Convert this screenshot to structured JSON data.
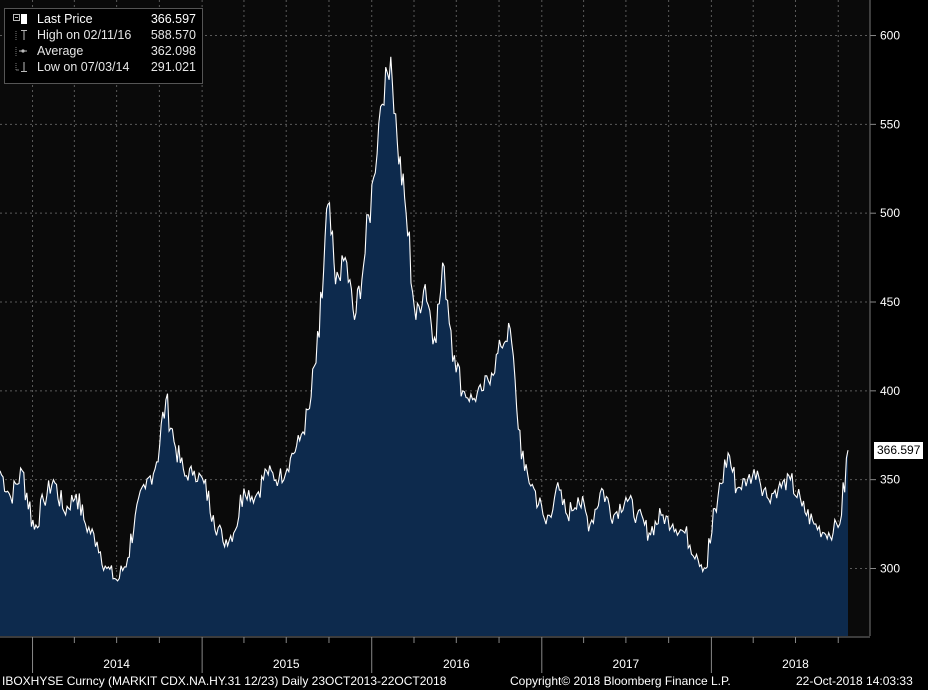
{
  "legend": {
    "last_price_label": "Last Price",
    "last_price_value": "366.597",
    "high_label": "High on 02/11/16",
    "high_value": "588.570",
    "average_label": "Average",
    "average_value": "362.098",
    "low_label": "Low on 07/03/14",
    "low_value": "291.021"
  },
  "last_tag": "366.597",
  "footer": {
    "security": "IBOXHYSE Curncy (MARKIT CDX.NA.HY.31 12/23)  Daily 23OCT2013-22OCT2018",
    "copyright": "Copyright© 2018 Bloomberg Finance L.P.",
    "timestamp": "22-Oct-2018 14:03:33"
  },
  "colors": {
    "background": "#000000",
    "area_fill": "#0d2a4d",
    "line": "#ffffff",
    "grid": "#5a5a5a"
  },
  "chart_data": {
    "type": "area",
    "title": "",
    "xlabel": "",
    "ylabel": "",
    "ylim": [
      262,
      620
    ],
    "y_ticks": [
      300,
      350,
      400,
      450,
      500,
      550,
      600
    ],
    "x_ticks": [
      "2014",
      "2015",
      "2016",
      "2017",
      "2018"
    ],
    "x_range": [
      "2013-10-23",
      "2018-10-22"
    ],
    "grid": true,
    "legend_position": "top-left",
    "series": [
      {
        "name": "Last Price",
        "x": [
          "2013-10-23",
          "2013-11-15",
          "2013-12-10",
          "2014-01-05",
          "2014-01-25",
          "2014-02-15",
          "2014-03-10",
          "2014-04-05",
          "2014-04-25",
          "2014-05-20",
          "2014-06-10",
          "2014-07-03",
          "2014-07-25",
          "2014-08-10",
          "2014-09-01",
          "2014-09-25",
          "2014-10-15",
          "2014-11-05",
          "2014-11-25",
          "2014-12-15",
          "2015-01-05",
          "2015-01-25",
          "2015-02-15",
          "2015-03-10",
          "2015-04-01",
          "2015-04-25",
          "2015-05-20",
          "2015-06-15",
          "2015-07-10",
          "2015-07-30",
          "2015-08-20",
          "2015-09-10",
          "2015-09-29",
          "2015-10-15",
          "2015-11-05",
          "2015-11-25",
          "2015-12-14",
          "2016-01-05",
          "2016-01-20",
          "2016-02-11",
          "2016-02-25",
          "2016-03-15",
          "2016-04-05",
          "2016-04-25",
          "2016-05-15",
          "2016-06-05",
          "2016-06-27",
          "2016-07-15",
          "2016-08-05",
          "2016-08-25",
          "2016-09-15",
          "2016-10-05",
          "2016-10-25",
          "2016-11-08",
          "2016-11-25",
          "2016-12-15",
          "2017-01-10",
          "2017-02-01",
          "2017-02-25",
          "2017-03-20",
          "2017-04-15",
          "2017-05-10",
          "2017-06-05",
          "2017-07-01",
          "2017-07-25",
          "2017-08-20",
          "2017-09-15",
          "2017-10-10",
          "2017-11-05",
          "2017-11-30",
          "2017-12-20",
          "2018-01-15",
          "2018-02-06",
          "2018-02-25",
          "2018-03-20",
          "2018-04-10",
          "2018-05-01",
          "2018-05-25",
          "2018-06-20",
          "2018-07-15",
          "2018-08-10",
          "2018-09-01",
          "2018-09-20",
          "2018-10-08",
          "2018-10-22"
        ],
        "values": [
          355,
          340,
          355,
          322,
          338,
          350,
          332,
          342,
          325,
          315,
          300,
          293,
          306,
          330,
          345,
          360,
          395,
          368,
          352,
          355,
          348,
          330,
          315,
          320,
          345,
          340,
          355,
          350,
          362,
          372,
          390,
          430,
          505,
          460,
          475,
          440,
          470,
          520,
          560,
          588,
          540,
          500,
          440,
          460,
          430,
          470,
          420,
          400,
          395,
          400,
          410,
          425,
          435,
          390,
          355,
          345,
          325,
          345,
          330,
          340,
          325,
          345,
          330,
          340,
          330,
          320,
          330,
          325,
          320,
          308,
          300,
          340,
          365,
          345,
          350,
          355,
          340,
          345,
          350,
          335,
          325,
          320,
          320,
          330,
          366.597
        ]
      }
    ]
  }
}
